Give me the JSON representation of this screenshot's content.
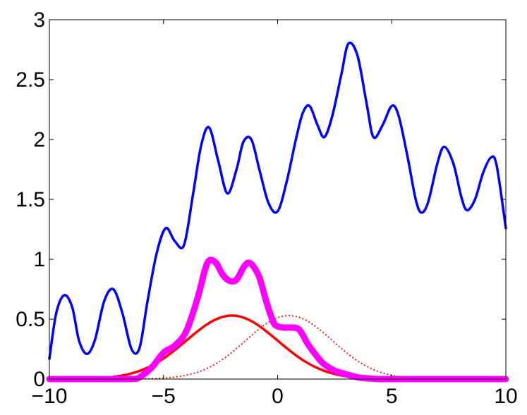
{
  "chart_data": {
    "type": "line",
    "xlim": [
      -10,
      10
    ],
    "ylim": [
      0,
      3
    ],
    "x_ticks": [
      -10,
      -5,
      0,
      5,
      10
    ],
    "x_tick_labels": [
      "−10",
      "−5",
      "0",
      "5",
      "10"
    ],
    "y_ticks": [
      0,
      0.5,
      1,
      1.5,
      2,
      2.5,
      3
    ],
    "y_tick_labels": [
      "0",
      "0.5",
      "1",
      "1.5",
      "2",
      "2.5",
      "3"
    ],
    "grid": false,
    "legend": "none",
    "series": [
      {
        "style": "solid",
        "color": "#0000ff",
        "x": [
          -10,
          -9.7,
          -9.35,
          -9,
          -8.7,
          -8.35,
          -8,
          -7.6,
          -7.2,
          -6.8,
          -6.4,
          -6.05,
          -5.7,
          -5.3,
          -4.9,
          -4.5,
          -4.1,
          -3.7,
          -3.35,
          -3,
          -2.6,
          -2.2,
          -1.8,
          -1.5,
          -1.15,
          -0.8,
          -0.4,
          0,
          0.4,
          0.8,
          1.1,
          1.4,
          1.75,
          2.05,
          2.4,
          2.8,
          3.1,
          3.5,
          3.9,
          4.2,
          4.6,
          5,
          5.3,
          5.7,
          6.05,
          6.3,
          6.6,
          7,
          7.3,
          7.7,
          8.05,
          8.3,
          8.65,
          9,
          9.35,
          9.6,
          10
        ],
        "y": [
          0.17,
          0.55,
          0.7,
          0.6,
          0.32,
          0.21,
          0.33,
          0.65,
          0.75,
          0.55,
          0.25,
          0.26,
          0.65,
          1.05,
          1.26,
          1.15,
          1.12,
          1.55,
          1.95,
          2.1,
          1.82,
          1.55,
          1.75,
          1.98,
          2.0,
          1.75,
          1.47,
          1.4,
          1.65,
          2.0,
          2.22,
          2.28,
          2.12,
          2.02,
          2.2,
          2.55,
          2.8,
          2.7,
          2.3,
          2.02,
          2.12,
          2.28,
          2.2,
          1.85,
          1.5,
          1.39,
          1.48,
          1.8,
          1.94,
          1.8,
          1.52,
          1.41,
          1.5,
          1.72,
          1.85,
          1.78,
          1.26
        ]
      },
      {
        "style": "solid",
        "color": "#ff0000",
        "mean": -2,
        "std": 2,
        "peak": 0.53,
        "x_range": [
          -10,
          10
        ]
      },
      {
        "style": "dotted",
        "color": "#ff0000",
        "mean": 0.5,
        "std": 1.9,
        "peak": 0.53,
        "x_range": [
          -10,
          10
        ]
      },
      {
        "style": "solid-thick",
        "color": "#ff00ff",
        "x": [
          -10,
          -7,
          -6.5,
          -6.2,
          -6,
          -5.5,
          -5,
          -4.5,
          -4,
          -3.5,
          -3.2,
          -3,
          -2.7,
          -2.4,
          -2.1,
          -1.8,
          -1.5,
          -1.3,
          -1.1,
          -0.8,
          -0.5,
          -0.2,
          0,
          0.3,
          0.6,
          0.9,
          1.1,
          1.3,
          1.6,
          2,
          2.5,
          3,
          3.5,
          4,
          4.5,
          5,
          10
        ],
        "y": [
          0,
          0,
          0,
          0.003,
          0.02,
          0.1,
          0.22,
          0.28,
          0.4,
          0.68,
          0.9,
          0.99,
          0.97,
          0.87,
          0.82,
          0.83,
          0.93,
          0.97,
          0.95,
          0.85,
          0.65,
          0.48,
          0.44,
          0.43,
          0.43,
          0.42,
          0.37,
          0.3,
          0.22,
          0.13,
          0.07,
          0.04,
          0.015,
          0.005,
          0.0,
          0.0,
          0
        ]
      }
    ]
  }
}
